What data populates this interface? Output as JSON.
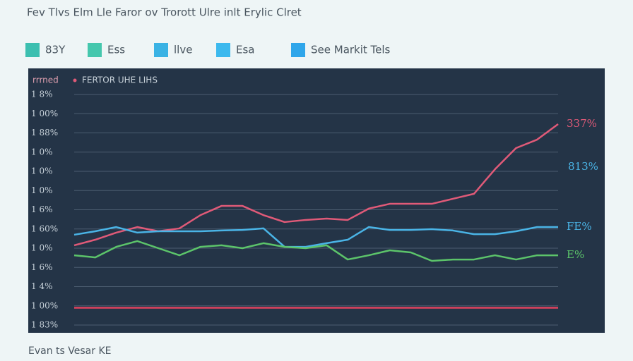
{
  "chart_data": {
    "type": "line",
    "title": "Fev Tlvs Elm Lle Faror ov Trorott Ulre inlt Erylic Clret",
    "legend": [
      {
        "label": "83Y",
        "color": "#3cbfb0"
      },
      {
        "label": "Ess",
        "color": "#45c7ad"
      },
      {
        "label": "llve",
        "color": "#3ab2e4"
      },
      {
        "label": "Esa",
        "color": "#3cb9ee"
      },
      {
        "label": "See Markit Tels",
        "color": "#2fa6ea"
      }
    ],
    "panel_tag": "rrrned",
    "panel_label": "FERTOR UHE LIHS",
    "x_label": "Evan ts Vesar KE",
    "categories": [
      null,
      null,
      null,
      null,
      null,
      null,
      null,
      null,
      null,
      null,
      null,
      null,
      null,
      null,
      null,
      null,
      null,
      null,
      null,
      null,
      null,
      null,
      null,
      null
    ],
    "ylim": [
      0,
      12
    ],
    "yticks": [
      {
        "value": 0,
        "label": "1 83%"
      },
      {
        "value": 1,
        "label": "1 00%"
      },
      {
        "value": 2,
        "label": "1 4%"
      },
      {
        "value": 3,
        "label": "1 6%"
      },
      {
        "value": 4,
        "label": "1 0%"
      },
      {
        "value": 5,
        "label": "1 60%"
      },
      {
        "value": 6,
        "label": "1 6%"
      },
      {
        "value": 7,
        "label": "1 0%"
      },
      {
        "value": 8,
        "label": "1 0%"
      },
      {
        "value": 9,
        "label": "1 0%"
      },
      {
        "value": 10,
        "label": "1 88%"
      },
      {
        "value": 11,
        "label": "1 00%"
      },
      {
        "value": 12,
        "label": "1 8%"
      }
    ],
    "grid": true,
    "series": [
      {
        "color": "#e05a78",
        "end_label": "337%",
        "values": [
          4.15,
          4.44,
          4.81,
          5.1,
          4.88,
          5.03,
          5.72,
          6.2,
          6.2,
          5.72,
          5.36,
          5.47,
          5.54,
          5.47,
          6.06,
          6.31,
          6.31,
          6.31,
          6.57,
          6.83,
          8.11,
          9.21,
          9.65,
          10.46
        ]
      },
      {
        "color": "#4ab4e6",
        "end_label": "FE%",
        "values": [
          4.7,
          4.88,
          5.1,
          4.81,
          4.88,
          4.88,
          4.88,
          4.92,
          4.95,
          5.03,
          4.07,
          4.07,
          4.26,
          4.44,
          5.1,
          4.95,
          4.95,
          4.99,
          4.92,
          4.73,
          4.73,
          4.88,
          5.1,
          5.1
        ]
      },
      {
        "color": "#5cc46a",
        "end_label": "E%",
        "values": [
          3.63,
          3.52,
          4.07,
          4.37,
          4.0,
          3.63,
          4.07,
          4.15,
          4.0,
          4.26,
          4.07,
          4.0,
          4.15,
          3.41,
          3.63,
          3.89,
          3.78,
          3.34,
          3.41,
          3.41,
          3.63,
          3.41,
          3.63,
          3.63
        ]
      },
      {
        "color": "#e0425e",
        "values": [
          0.9,
          0.9,
          0.9,
          0.9,
          0.9,
          0.9,
          0.9,
          0.9,
          0.9,
          0.9,
          0.9,
          0.9,
          0.9,
          0.9,
          0.9,
          0.9,
          0.9,
          0.9,
          0.9,
          0.9,
          0.9,
          0.9,
          0.9,
          0.9
        ]
      }
    ],
    "annotation": "813%"
  }
}
